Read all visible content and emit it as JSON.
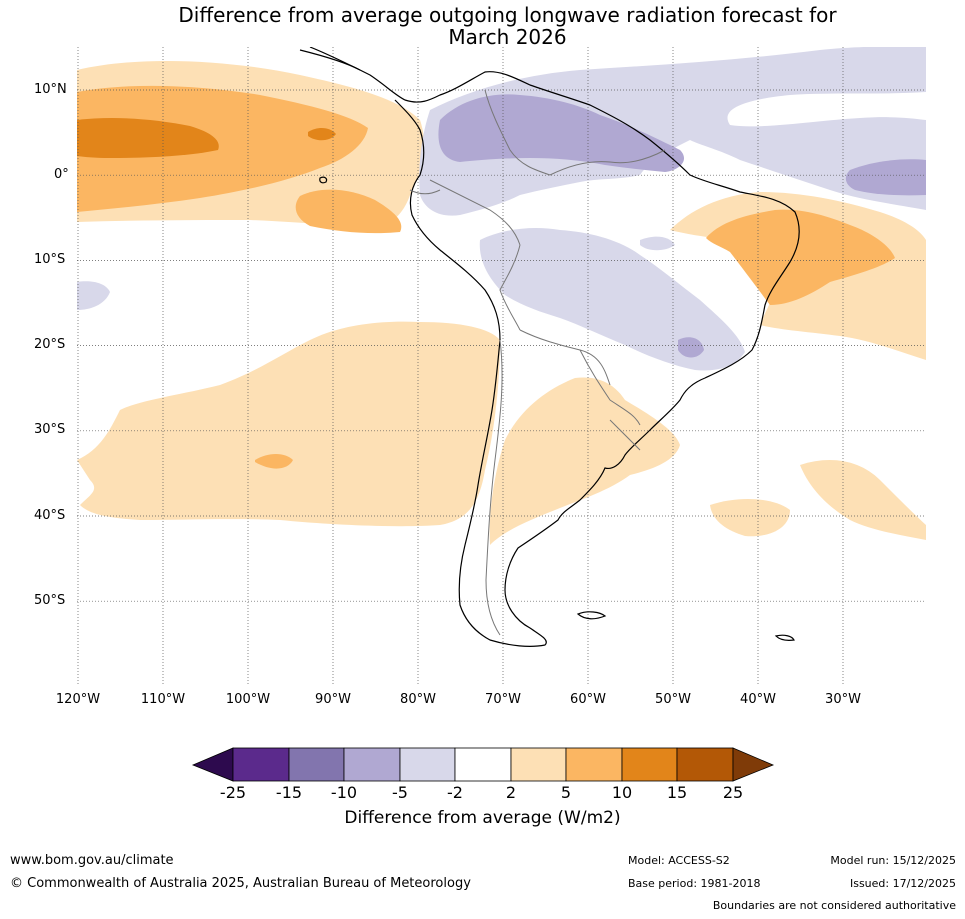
{
  "title_line1": "Difference from average outgoing longwave radiation forecast for",
  "title_line2": "March 2026",
  "lat_labels": [
    "10°N",
    "0°",
    "10°S",
    "20°S",
    "30°S",
    "40°S",
    "50°S"
  ],
  "lon_labels": [
    "120°W",
    "110°W",
    "100°W",
    "90°W",
    "80°W",
    "70°W",
    "60°W",
    "50°W",
    "40°W",
    "30°W"
  ],
  "colorbar": {
    "ticks": [
      "-25",
      "-15",
      "-10",
      "-5",
      "-2",
      "2",
      "5",
      "10",
      "15",
      "25"
    ],
    "label": "Difference from average (W/m2)",
    "colors": {
      "low_extend": "#2d0a4e",
      "neg15": "#5b2a8c",
      "neg10": "#8275ae",
      "neg5": "#b0a8d2",
      "neg2": "#d8d8ea",
      "neutral": "#ffffff",
      "pos2": "#fde0b5",
      "pos5": "#fbb662",
      "pos10": "#e2851a",
      "pos15": "#b35806",
      "high_extend": "#7f3b08"
    }
  },
  "footer": {
    "url": "www.bom.gov.au/climate",
    "copyright": "© Commonwealth of Australia 2025, Australian Bureau of Meteorology",
    "model": "Model: ACCESS-S2",
    "base_period": "Base period: 1981-2018",
    "model_run": "Model run: 15/12/2025",
    "issued": "Issued: 17/12/2025",
    "disclaimer": "Boundaries are not considered authoritative"
  }
}
